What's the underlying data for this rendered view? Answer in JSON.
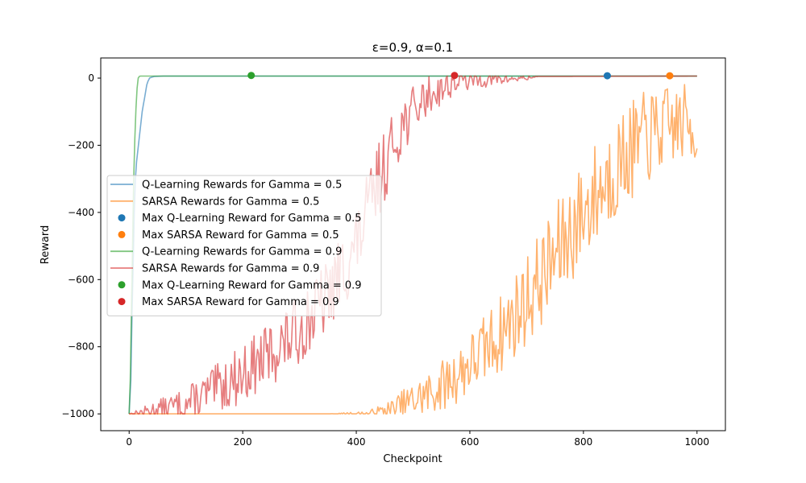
{
  "chart_data": {
    "type": "line",
    "title": "ε=0.9, α=0.1",
    "xlabel": "Checkpoint",
    "ylabel": "Reward",
    "xlim": [
      -50,
      1050
    ],
    "ylim": [
      -1050,
      60
    ],
    "xticks": [
      0,
      200,
      400,
      600,
      800,
      1000
    ],
    "xtick_labels": [
      "0",
      "200",
      "400",
      "600",
      "800",
      "1000"
    ],
    "yticks": [
      0,
      -200,
      -400,
      -600,
      -800,
      -1000
    ],
    "ytick_labels": [
      "0",
      "−200",
      "−400",
      "−600",
      "−800",
      "−1000"
    ],
    "grid": false,
    "legend_position": "center-left",
    "series": [
      {
        "name": "Q-Learning Rewards for Gamma = 0.5",
        "kind": "line",
        "color": "#1f77b4",
        "alpha": 0.6,
        "x": [
          0,
          3,
          5,
          7,
          9,
          11,
          13,
          15,
          17,
          19,
          21,
          23,
          25,
          27,
          29,
          31,
          33,
          36,
          40,
          45,
          60,
          100,
          200,
          400,
          600,
          800,
          1000
        ],
        "y": [
          -1000,
          -900,
          -700,
          -560,
          -400,
          -300,
          -250,
          -220,
          -190,
          -160,
          -130,
          -100,
          -80,
          -60,
          -40,
          -20,
          -10,
          0,
          3,
          5,
          6,
          6,
          6,
          6,
          6,
          6,
          6
        ]
      },
      {
        "name": "SARSA Rewards for Gamma = 0.5",
        "kind": "noisy",
        "color": "#ff7f0e",
        "alpha": 0.6,
        "x": [
          0,
          350,
          420,
          460,
          500,
          540,
          580,
          620,
          660,
          700,
          740,
          780,
          820,
          860,
          900,
          940,
          980,
          1000
        ],
        "y": [
          -1000,
          -1000,
          -1000,
          -990,
          -960,
          -930,
          -880,
          -820,
          -750,
          -660,
          -560,
          -450,
          -350,
          -260,
          -190,
          -150,
          -130,
          -170
        ],
        "noise": [
          0,
          0,
          5,
          20,
          35,
          45,
          55,
          65,
          75,
          85,
          95,
          100,
          100,
          95,
          90,
          80,
          70,
          60
        ],
        "seed": 7
      },
      {
        "name": "Max Q-Learning Reward for Gamma = 0.5",
        "kind": "point",
        "color": "#1f77b4",
        "x": [
          842
        ],
        "y": [
          7
        ]
      },
      {
        "name": "Max SARSA Reward for Gamma = 0.5",
        "kind": "point",
        "color": "#ff7f0e",
        "x": [
          952
        ],
        "y": [
          7
        ]
      },
      {
        "name": "Q-Learning Rewards for Gamma = 0.9",
        "kind": "line",
        "color": "#2ca02c",
        "alpha": 0.6,
        "x": [
          0,
          2,
          4,
          6,
          8,
          10,
          12,
          14,
          16,
          18,
          20,
          60,
          200,
          400,
          600,
          800,
          1000
        ],
        "y": [
          -1000,
          -900,
          -700,
          -500,
          -300,
          -180,
          -90,
          -30,
          0,
          5,
          6,
          6,
          6,
          6,
          6,
          6,
          6
        ]
      },
      {
        "name": "SARSA Rewards for Gamma = 0.9",
        "kind": "noisy",
        "color": "#d62728",
        "alpha": 0.6,
        "x": [
          0,
          40,
          100,
          150,
          200,
          250,
          300,
          350,
          400,
          440,
          480,
          520,
          550,
          580,
          620,
          660,
          700,
          720,
          1000
        ],
        "y": [
          -1000,
          -990,
          -970,
          -930,
          -880,
          -820,
          -750,
          -650,
          -500,
          -300,
          -140,
          -60,
          -30,
          -10,
          -5,
          -3,
          0,
          5,
          6
        ],
        "noise": [
          0,
          15,
          30,
          45,
          55,
          60,
          65,
          70,
          75,
          70,
          55,
          40,
          30,
          20,
          15,
          10,
          5,
          0,
          0
        ],
        "seed": 13
      },
      {
        "name": "Max Q-Learning Reward for Gamma = 0.9",
        "kind": "point",
        "color": "#2ca02c",
        "x": [
          215
        ],
        "y": [
          8
        ]
      },
      {
        "name": "Max SARSA Reward for Gamma = 0.9",
        "kind": "point",
        "color": "#d62728",
        "x": [
          573
        ],
        "y": [
          8
        ]
      }
    ]
  }
}
